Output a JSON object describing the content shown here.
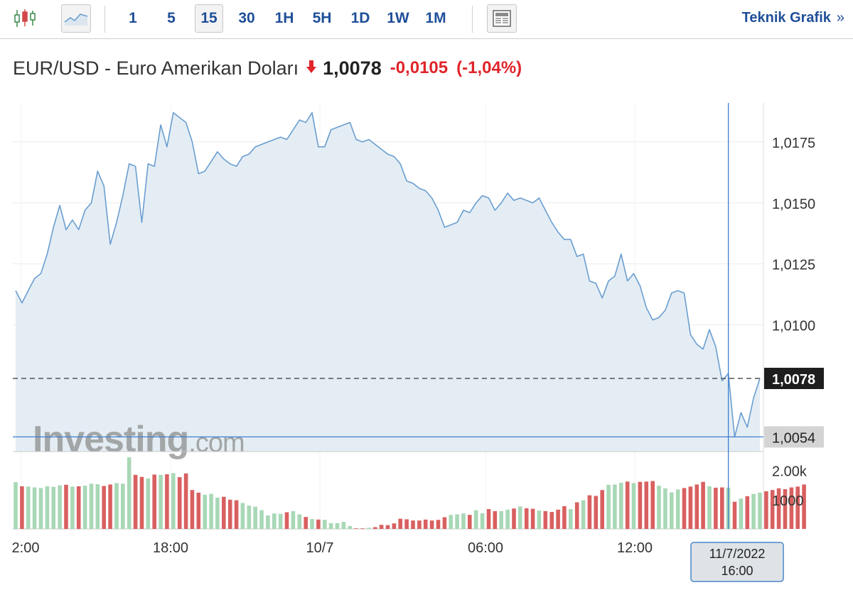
{
  "toolbar": {
    "icons": [
      "candlestick-icon",
      "area-chart-icon",
      "news-icon"
    ],
    "intervals": [
      "1",
      "5",
      "15",
      "30",
      "1H",
      "5H",
      "1D",
      "1W",
      "1M"
    ],
    "active_interval": "15",
    "teknik_label": "Teknik Grafik",
    "teknik_chevron": "»"
  },
  "header": {
    "name": "EUR/USD - Euro Amerikan Doları",
    "direction": "down",
    "price": "1,0078",
    "change": "-0,0105",
    "change_pct": "(-1,04%)",
    "negative_color": "#e0252b"
  },
  "watermark": {
    "brand": "Investing",
    "suffix": ".com"
  },
  "crosshair": {
    "date_label": "11/7/2022",
    "time_label": "16:00",
    "value_label": "1,0054"
  },
  "chart_data": {
    "type": "area",
    "price": {
      "ylim": [
        1.0048,
        1.0191
      ],
      "yticks": [
        1.01,
        1.0125,
        1.015,
        1.0175
      ],
      "ytick_labels": [
        "1,0100",
        "1,0125",
        "1,0150",
        "1,0175"
      ],
      "last_value": 1.0078,
      "last_label": "1,0078",
      "crosshair_value": 1.0054,
      "values": [
        1.0114,
        1.0109,
        1.0114,
        1.0119,
        1.0121,
        1.0129,
        1.014,
        1.0149,
        1.0139,
        1.0143,
        1.0139,
        1.0147,
        1.015,
        1.0163,
        1.0157,
        1.0133,
        1.0142,
        1.0153,
        1.0166,
        1.0165,
        1.0142,
        1.0166,
        1.0165,
        1.0182,
        1.0173,
        1.0187,
        1.0185,
        1.0183,
        1.0175,
        1.0162,
        1.0163,
        1.0167,
        1.0171,
        1.0168,
        1.0166,
        1.0165,
        1.0169,
        1.017,
        1.0173,
        1.0174,
        1.0175,
        1.0176,
        1.0177,
        1.0176,
        1.018,
        1.0184,
        1.0183,
        1.0187,
        1.0173,
        1.0173,
        1.018,
        1.0181,
        1.0182,
        1.0183,
        1.0176,
        1.0175,
        1.0176,
        1.0174,
        1.0172,
        1.017,
        1.0169,
        1.0166,
        1.0159,
        1.0158,
        1.0156,
        1.0155,
        1.0152,
        1.0147,
        1.014,
        1.0141,
        1.0142,
        1.0147,
        1.0146,
        1.015,
        1.0153,
        1.0152,
        1.0147,
        1.015,
        1.0154,
        1.0151,
        1.0152,
        1.0151,
        1.015,
        1.0152,
        1.0147,
        1.0142,
        1.0138,
        1.0135,
        1.0135,
        1.0128,
        1.0129,
        1.0118,
        1.0117,
        1.0111,
        1.0118,
        1.012,
        1.0129,
        1.0118,
        1.0121,
        1.0116,
        1.0107,
        1.0102,
        1.0103,
        1.0106,
        1.0113,
        1.0114,
        1.0113,
        1.0096,
        1.0092,
        1.009,
        1.0098,
        1.0091,
        1.0077,
        1.008,
        1.0054,
        1.0064,
        1.0058,
        1.007,
        1.0078
      ]
    },
    "volume": {
      "yticks": [
        1000,
        2000
      ],
      "ytick_labels": [
        "1000",
        "2.00k"
      ],
      "ymax": 2550,
      "values": [
        1600,
        1460,
        1450,
        1420,
        1400,
        1460,
        1440,
        1490,
        1510,
        1450,
        1460,
        1480,
        1550,
        1530,
        1470,
        1520,
        1570,
        1550,
        2450,
        1850,
        1780,
        1730,
        1860,
        1850,
        1870,
        1910,
        1770,
        1900,
        1330,
        1240,
        1170,
        1200,
        1070,
        1100,
        1000,
        980,
        890,
        800,
        760,
        640,
        460,
        530,
        520,
        570,
        610,
        500,
        410,
        340,
        320,
        310,
        200,
        200,
        240,
        100,
        20,
        20,
        40,
        60,
        140,
        130,
        190,
        350,
        330,
        290,
        290,
        320,
        290,
        310,
        400,
        480,
        500,
        530,
        480,
        640,
        540,
        680,
        610,
        610,
        660,
        700,
        770,
        710,
        690,
        630,
        610,
        580,
        660,
        780,
        680,
        910,
        980,
        1150,
        1130,
        1330,
        1510,
        1520,
        1580,
        1620,
        1570,
        1610,
        1620,
        1640,
        1480,
        1390,
        1250,
        1350,
        1400,
        1450,
        1520,
        1610,
        1460,
        1410,
        1420,
        1410,
        930,
        1040,
        1120,
        1200,
        1240,
        1290,
        1330,
        1390,
        1360,
        1420,
        1450,
        1520
      ]
    },
    "xtick_labels": [
      "2:00",
      "18:00",
      "10/7",
      "06:00",
      "12:00"
    ],
    "colors": {
      "line": "#6a9ed0",
      "fill": "#e4edf4",
      "vol_up": "#a8d8b6",
      "vol_down": "#d96060",
      "crosshair": "#3d7fd0"
    }
  }
}
